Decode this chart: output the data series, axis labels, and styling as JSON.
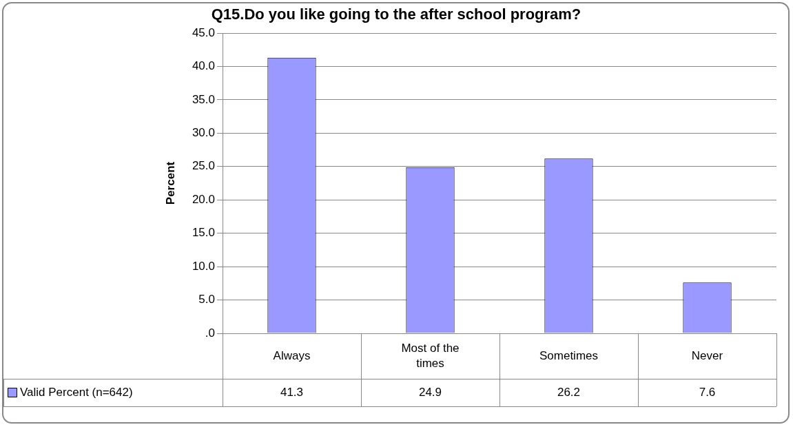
{
  "chart_data": {
    "type": "bar",
    "title": "Q15.Do you like going to the after school program?",
    "ylabel": "Percent",
    "categories": [
      "Always",
      "Most of the times",
      "Sometimes",
      "Never"
    ],
    "series": [
      {
        "name": "Valid Percent (n=642)",
        "color": "#9999ff",
        "values": [
          41.3,
          24.9,
          26.2,
          7.6
        ]
      }
    ],
    "ylim": [
      0,
      45
    ],
    "yticks": [
      {
        "value": 0,
        "label": ".0"
      },
      {
        "value": 5,
        "label": "5.0"
      },
      {
        "value": 10,
        "label": "10.0"
      },
      {
        "value": 15,
        "label": "15.0"
      },
      {
        "value": 20,
        "label": "20.0"
      },
      {
        "value": 25,
        "label": "25.0"
      },
      {
        "value": 30,
        "label": "30.0"
      },
      {
        "value": 35,
        "label": "35.0"
      },
      {
        "value": 40,
        "label": "40.0"
      },
      {
        "value": 45,
        "label": "45.0"
      }
    ],
    "grid": "y",
    "legend": "bottom left",
    "data_labels": true
  }
}
